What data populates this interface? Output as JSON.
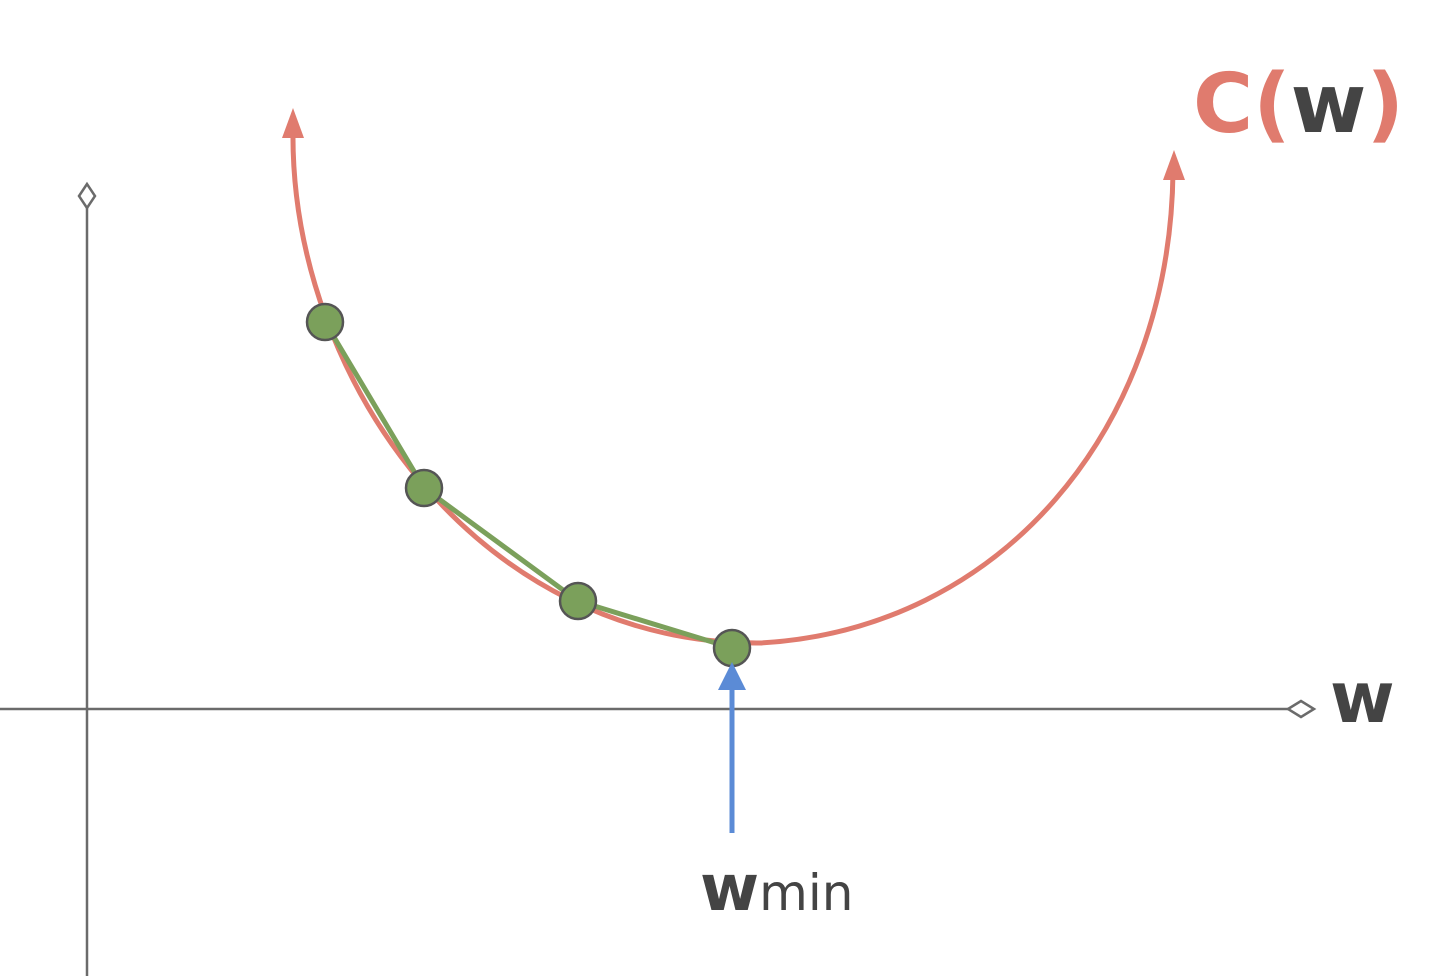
{
  "labels": {
    "curve_prefix": "C",
    "curve_open": "(",
    "curve_var": "w",
    "curve_close": ")",
    "x_axis": "w",
    "min_main": "w",
    "min_sub": "min"
  },
  "colors": {
    "axis": "#6b6b6b",
    "curve": "#e07b6e",
    "path": "#7ba05b",
    "point_fill": "#7ba05b",
    "point_stroke": "#555555",
    "pointer": "#5b8bd6",
    "text_dark": "#444444"
  },
  "icons": {
    "x_axis_end": "diamond-arrowhead-icon",
    "y_axis_end": "diamond-arrowhead-icon",
    "curve_ends": "arrowhead-icon",
    "pointer_head": "arrowhead-icon"
  }
}
